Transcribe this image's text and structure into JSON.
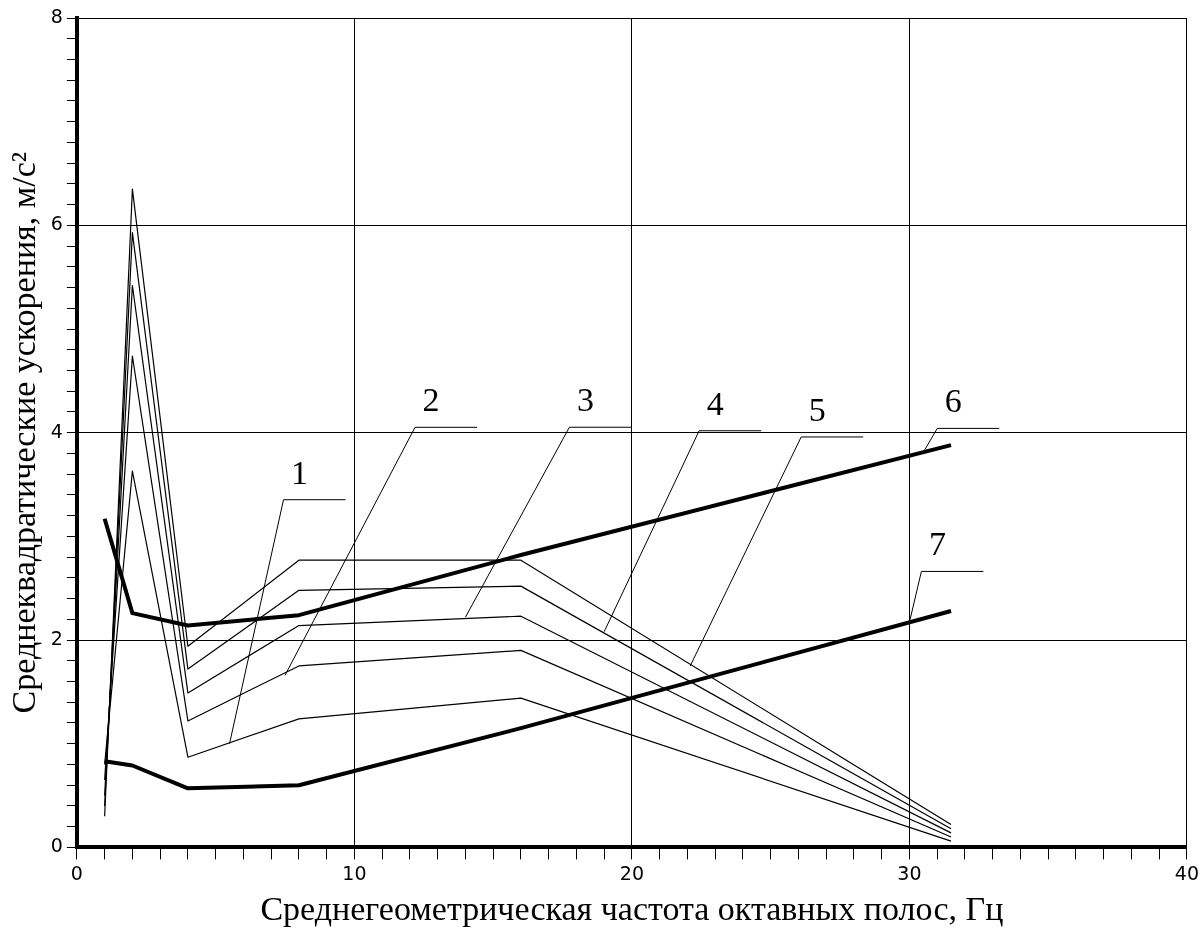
{
  "chart_data": {
    "type": "line",
    "xlabel": "Среднегеометрическая частота октавных полос, Гц",
    "ylabel": "Среднеквадратические ускорения, м/с²",
    "xlim": [
      0,
      40
    ],
    "ylim": [
      0,
      8
    ],
    "xticks": [
      0,
      {
        "value": 1,
        "label": null
      },
      {
        "value": 2,
        "label": null
      },
      {
        "value": 3,
        "label": null
      },
      {
        "value": 4,
        "label": null
      },
      {
        "value": 5,
        "label": null
      },
      {
        "value": 6,
        "label": null
      },
      {
        "value": 7,
        "label": null
      },
      {
        "value": 8,
        "label": null
      },
      {
        "value": 9,
        "label": null
      },
      10,
      {
        "value": 11,
        "label": null
      },
      {
        "value": 12,
        "label": null
      },
      {
        "value": 13,
        "label": null
      },
      {
        "value": 14,
        "label": null
      },
      {
        "value": 15,
        "label": null
      },
      {
        "value": 16,
        "label": null
      },
      {
        "value": 17,
        "label": null
      },
      {
        "value": 18,
        "label": null
      },
      {
        "value": 19,
        "label": null
      },
      20,
      {
        "value": 21,
        "label": null
      },
      {
        "value": 22,
        "label": null
      },
      {
        "value": 23,
        "label": null
      },
      {
        "value": 24,
        "label": null
      },
      {
        "value": 25,
        "label": null
      },
      {
        "value": 26,
        "label": null
      },
      {
        "value": 27,
        "label": null
      },
      {
        "value": 28,
        "label": null
      },
      {
        "value": 29,
        "label": null
      },
      30,
      {
        "value": 31,
        "label": null
      },
      {
        "value": 32,
        "label": null
      },
      {
        "value": 33,
        "label": null
      },
      {
        "value": 34,
        "label": null
      },
      {
        "value": 35,
        "label": null
      },
      {
        "value": 36,
        "label": null
      },
      {
        "value": 37,
        "label": null
      },
      {
        "value": 38,
        "label": null
      },
      {
        "value": 39,
        "label": null
      },
      40
    ],
    "yticks": [
      0,
      {
        "value": 0.2,
        "label": null
      },
      {
        "value": 0.4,
        "label": null
      },
      {
        "value": 0.6,
        "label": null
      },
      {
        "value": 0.8,
        "label": null
      },
      {
        "value": 1,
        "label": null
      },
      {
        "value": 1.2,
        "label": null
      },
      {
        "value": 1.4,
        "label": null
      },
      {
        "value": 1.6,
        "label": null
      },
      {
        "value": 1.8,
        "label": null
      },
      2,
      {
        "value": 2.2,
        "label": null
      },
      {
        "value": 2.4,
        "label": null
      },
      {
        "value": 2.6,
        "label": null
      },
      {
        "value": 2.8,
        "label": null
      },
      {
        "value": 3,
        "label": null
      },
      {
        "value": 3.2,
        "label": null
      },
      {
        "value": 3.4,
        "label": null
      },
      {
        "value": 3.6,
        "label": null
      },
      {
        "value": 3.8,
        "label": null
      },
      4,
      {
        "value": 4.2,
        "label": null
      },
      {
        "value": 4.4,
        "label": null
      },
      {
        "value": 4.6,
        "label": null
      },
      {
        "value": 4.8,
        "label": null
      },
      {
        "value": 5,
        "label": null
      },
      {
        "value": 5.2,
        "label": null
      },
      {
        "value": 5.4,
        "label": null
      },
      {
        "value": 5.6,
        "label": null
      },
      {
        "value": 5.8,
        "label": null
      },
      6,
      {
        "value": 6.2,
        "label": null
      },
      {
        "value": 6.4,
        "label": null
      },
      {
        "value": 6.6,
        "label": null
      },
      {
        "value": 6.8,
        "label": null
      },
      {
        "value": 7,
        "label": null
      },
      {
        "value": 7.2,
        "label": null
      },
      {
        "value": 7.4,
        "label": null
      },
      {
        "value": 7.6,
        "label": null
      },
      {
        "value": 7.8,
        "label": null
      },
      8
    ],
    "x": [
      1,
      2,
      4,
      8,
      16,
      31.5
    ],
    "series": [
      {
        "color": "#000000",
        "values": [
          0.8,
          3.63,
          0.87,
          1.24,
          1.44,
          0.06
        ]
      },
      {
        "color": "#000000",
        "values": [
          0.65,
          4.74,
          1.22,
          1.75,
          1.9,
          0.1
        ]
      },
      {
        "color": "#000000",
        "values": [
          0.5,
          5.42,
          1.49,
          2.14,
          2.23,
          0.14
        ]
      },
      {
        "color": "#000000",
        "values": [
          0.4,
          5.93,
          1.72,
          2.48,
          2.52,
          0.18
        ]
      },
      {
        "color": "#000000",
        "values": [
          0.3,
          6.35,
          1.94,
          2.77,
          2.77,
          0.22
        ]
      },
      {
        "color": "#000000",
        "values": [
          3.17,
          2.26,
          2.14,
          2.24,
          2.82,
          3.88
        ]
      },
      {
        "color": "#000000",
        "values": [
          0.83,
          0.79,
          0.57,
          0.6,
          1.15,
          2.28
        ]
      }
    ],
    "annotations": [
      {
        "text": "1",
        "x": 5.5,
        "y": 1.0
      },
      {
        "text": "2",
        "x": 7.5,
        "y": 1.66
      },
      {
        "text": "3",
        "x": 14,
        "y": 2.22
      },
      {
        "text": "4",
        "x": 19,
        "y": 2.08
      },
      {
        "text": "5",
        "x": 22.1,
        "y": 1.75
      },
      {
        "text": "6",
        "x": 30.5,
        "y": 3.81
      },
      {
        "text": "7",
        "x": 30,
        "y": 2.17
      }
    ],
    "grid": true,
    "legend": false,
    "marker": "none",
    "line_style": "solid"
  }
}
